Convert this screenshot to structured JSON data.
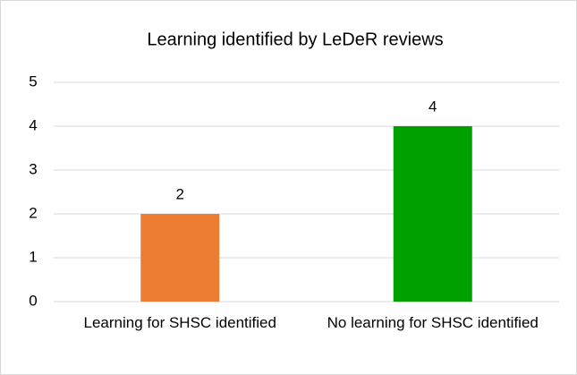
{
  "chart_data": {
    "type": "bar",
    "title": "Learning identified by LeDeR reviews",
    "categories": [
      "Learning for SHSC identified",
      "No learning for SHSC identified"
    ],
    "values": [
      2,
      4
    ],
    "colors": [
      "#ed7d31",
      "#00a000"
    ],
    "ylim": [
      0,
      5
    ],
    "yticks": [
      0,
      1,
      2,
      3,
      4,
      5
    ],
    "grid": true
  }
}
